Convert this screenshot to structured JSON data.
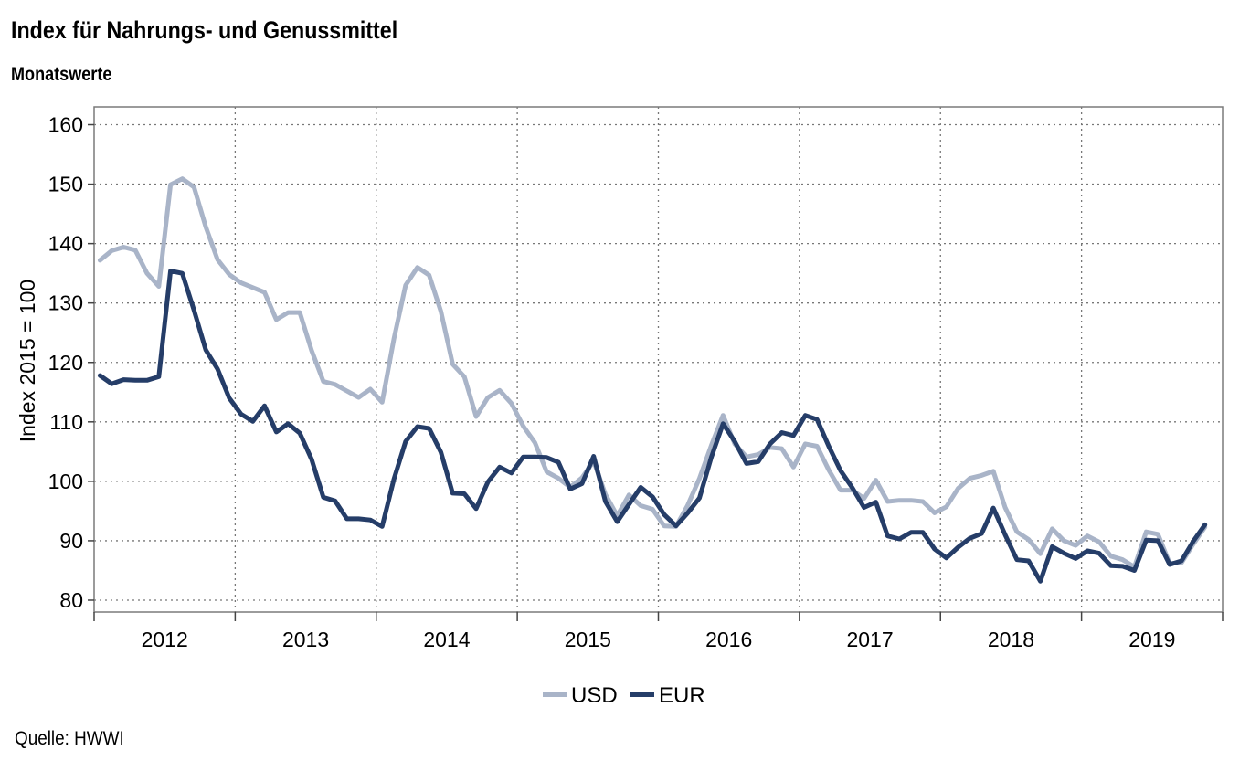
{
  "header": {
    "title": "Index für Nahrungs- und Genussmittel",
    "subtitle": "Monatswerte"
  },
  "footer": {
    "source": "Quelle: HWWI"
  },
  "chart_data": {
    "type": "line",
    "title": "Index für Nahrungs- und Genussmittel",
    "subtitle": "Monatswerte",
    "xlabel": "",
    "ylabel": "Index 2015 = 100",
    "ylim": [
      78,
      163
    ],
    "yticks": [
      80,
      90,
      100,
      110,
      120,
      130,
      140,
      150,
      160
    ],
    "x_start": "2012-01",
    "x_end": "2019-12",
    "x_tick_labels": [
      "2012",
      "2013",
      "2014",
      "2015",
      "2016",
      "2017",
      "2018",
      "2019"
    ],
    "grid": true,
    "legend_position": "bottom-center",
    "series": [
      {
        "name": "USD",
        "color": "#a9b4c8",
        "values": [
          137.2,
          138.8,
          139.4,
          138.9,
          135.0,
          132.8,
          149.9,
          150.9,
          149.5,
          142.8,
          137.3,
          134.8,
          133.4,
          132.6,
          131.8,
          127.2,
          128.4,
          128.4,
          122.0,
          116.8,
          116.3,
          115.2,
          114.1,
          115.5,
          113.3,
          123.9,
          133.0,
          136.0,
          134.7,
          128.6,
          119.7,
          117.6,
          110.9,
          114.1,
          115.3,
          113.1,
          109.3,
          106.5,
          101.6,
          100.5,
          99.0,
          100.6,
          103.4,
          97.8,
          94.2,
          97.7,
          95.9,
          95.3,
          92.5,
          92.4,
          96.0,
          100.5,
          106.0,
          111.1,
          106.3,
          104.1,
          104.5,
          105.7,
          105.5,
          102.4,
          106.3,
          105.9,
          101.9,
          98.5,
          98.5,
          97.1,
          100.2,
          96.6,
          96.8,
          96.8,
          96.6,
          94.7,
          95.7,
          98.8,
          100.5,
          101.0,
          101.7,
          95.6,
          91.5,
          90.2,
          87.8,
          92.0,
          90.0,
          89.2,
          90.8,
          89.8,
          87.4,
          86.8,
          85.6,
          91.5,
          91.1,
          86.2,
          86.3,
          89.4,
          92.3
        ]
      },
      {
        "name": "EUR",
        "color": "#253d68",
        "values": [
          117.8,
          116.4,
          117.1,
          117.0,
          117.0,
          117.6,
          135.4,
          135.0,
          128.8,
          122.1,
          118.9,
          114.0,
          111.3,
          110.1,
          112.7,
          108.3,
          109.7,
          108.1,
          103.7,
          97.3,
          96.7,
          93.7,
          93.7,
          93.5,
          92.4,
          100.3,
          106.7,
          109.2,
          108.9,
          104.9,
          98.0,
          97.9,
          95.4,
          99.9,
          102.4,
          101.4,
          104.1,
          104.1,
          104.0,
          103.2,
          98.7,
          99.6,
          104.2,
          96.6,
          93.2,
          96.1,
          99.0,
          97.4,
          94.4,
          92.5,
          94.7,
          97.2,
          104.0,
          109.7,
          106.7,
          103.0,
          103.3,
          106.3,
          108.2,
          107.7,
          111.1,
          110.4,
          105.9,
          101.8,
          98.9,
          95.6,
          96.5,
          90.8,
          90.3,
          91.4,
          91.4,
          88.6,
          87.1,
          88.9,
          90.4,
          91.2,
          95.5,
          91.0,
          86.8,
          86.6,
          83.2,
          89.0,
          87.9,
          87.0,
          88.3,
          87.9,
          85.8,
          85.7,
          85.0,
          90.1,
          90.0,
          86.0,
          86.6,
          89.9,
          92.7
        ]
      }
    ]
  }
}
